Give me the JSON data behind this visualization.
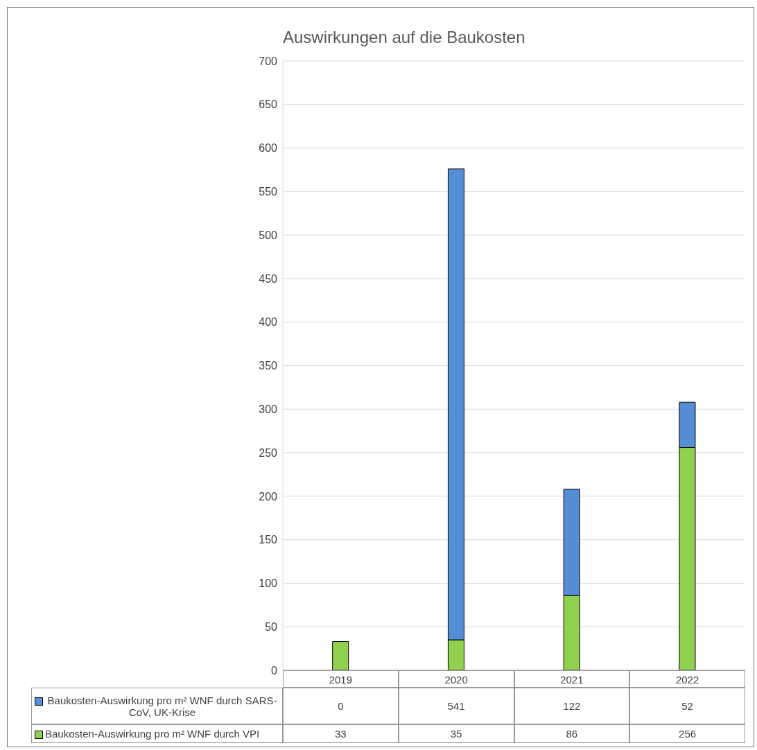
{
  "chart_data": {
    "type": "bar",
    "title": "Auswirkungen auf die Baukosten",
    "categories": [
      "2019",
      "2020",
      "2021",
      "2022"
    ],
    "stacked": true,
    "series": [
      {
        "name": "Baukosten-Auswirkung pro m² WNF durch VPI",
        "color": "#92d050",
        "values": [
          33,
          35,
          86,
          256
        ]
      },
      {
        "name": "Baukosten-Auswirkung pro m² WNF durch SARS-CoV, UK-Krise",
        "color": "#558ed5",
        "values": [
          0,
          541,
          122,
          52
        ]
      }
    ],
    "ylim": [
      0,
      700
    ],
    "yticks": [
      0,
      50,
      100,
      150,
      200,
      250,
      300,
      350,
      400,
      450,
      500,
      550,
      600,
      650,
      700
    ],
    "grid": "y",
    "legend": "bottom",
    "data_labels": true
  }
}
